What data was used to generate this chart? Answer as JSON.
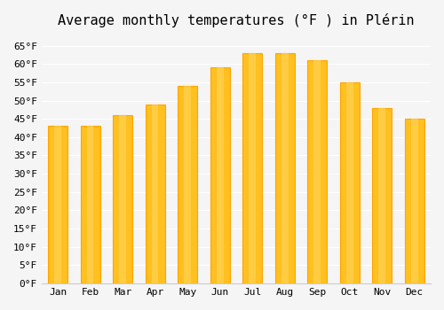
{
  "months": [
    "Jan",
    "Feb",
    "Mar",
    "Apr",
    "May",
    "Jun",
    "Jul",
    "Aug",
    "Sep",
    "Oct",
    "Nov",
    "Dec"
  ],
  "values": [
    43,
    43,
    46,
    49,
    54,
    59,
    63,
    63,
    61,
    55,
    48,
    45
  ],
  "bar_color_face": "#FFC020",
  "bar_color_edge": "#FFA500",
  "title": "Average monthly temperatures (°F ) in Plérin",
  "ylabel": "",
  "xlabel": "",
  "ylim": [
    0,
    68
  ],
  "ytick_step": 5,
  "background_color": "#f5f5f5",
  "grid_color": "#ffffff",
  "title_fontsize": 11,
  "tick_fontsize": 8,
  "font_family": "monospace"
}
